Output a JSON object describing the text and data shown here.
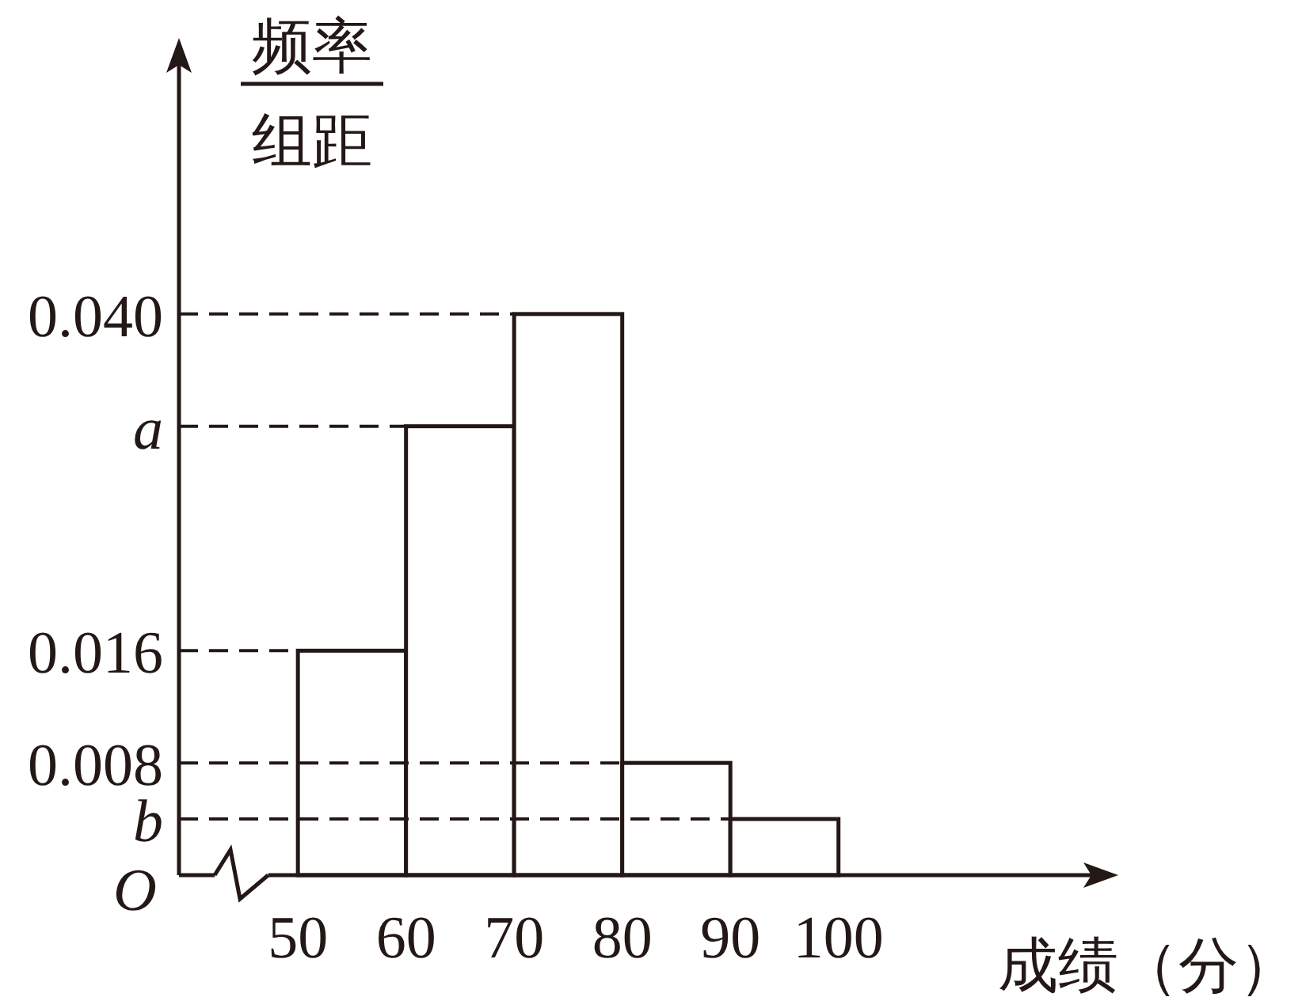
{
  "chart_data": {
    "type": "histogram",
    "ylabel": "频率组距",
    "xlabel": "成绩（分）",
    "bins": [
      50,
      60,
      70,
      80,
      90,
      100
    ],
    "values": [
      0.016,
      0.032,
      0.04,
      0.008,
      0.004
    ],
    "color": "#ffffff",
    "xlim": [
      39,
      125
    ],
    "ylim": [
      0,
      0.059
    ],
    "xticks": [
      50,
      60,
      70,
      80,
      90,
      100
    ],
    "yticks": [
      {
        "value": 0,
        "label": "O"
      },
      {
        "value": 0.004,
        "label": "b"
      },
      0.008,
      0.016,
      {
        "value": 0.032,
        "label": "a"
      },
      {
        "value": 0.04,
        "label": "0.040"
      }
    ],
    "ref_lines": [
      {
        "axis": "y",
        "value": 0.04,
        "line_style": "dashed"
      },
      {
        "axis": "y",
        "value": 0.032,
        "line_style": "dashed"
      },
      {
        "axis": "y",
        "value": 0.016,
        "line_style": "dashed"
      },
      {
        "axis": "y",
        "value": 0.008,
        "line_style": "dashed"
      },
      {
        "axis": "y",
        "value": 0.004,
        "line_style": "dashed"
      }
    ],
    "grid": false
  }
}
